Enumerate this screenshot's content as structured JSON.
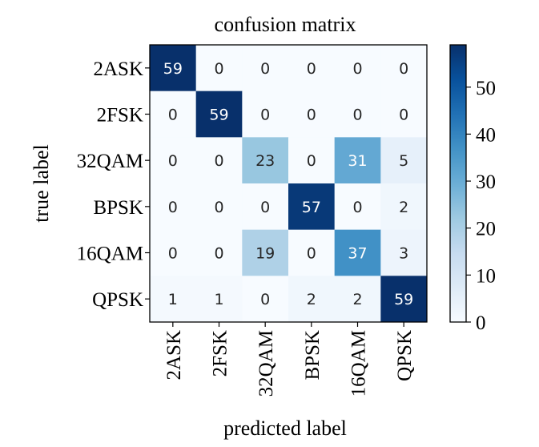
{
  "chart_data": {
    "type": "heatmap",
    "title": "confusion matrix",
    "xlabel": "predicted label",
    "ylabel": "true label",
    "x_tick_labels": [
      "2ASK",
      "2FSK",
      "32QAM",
      "BPSK",
      "16QAM",
      "QPSK"
    ],
    "y_tick_labels": [
      "2ASK",
      "2FSK",
      "32QAM",
      "BPSK",
      "16QAM",
      "QPSK"
    ],
    "values": [
      [
        59,
        0,
        0,
        0,
        0,
        0
      ],
      [
        0,
        59,
        0,
        0,
        0,
        0
      ],
      [
        0,
        0,
        23,
        0,
        31,
        5
      ],
      [
        0,
        0,
        0,
        57,
        0,
        2
      ],
      [
        0,
        0,
        19,
        0,
        37,
        3
      ],
      [
        1,
        1,
        0,
        2,
        2,
        59
      ]
    ],
    "colorbar": {
      "min": 0,
      "max": 59,
      "ticks": [
        0,
        10,
        20,
        30,
        40,
        50
      ],
      "colormap": "Blues"
    },
    "grid": false
  }
}
